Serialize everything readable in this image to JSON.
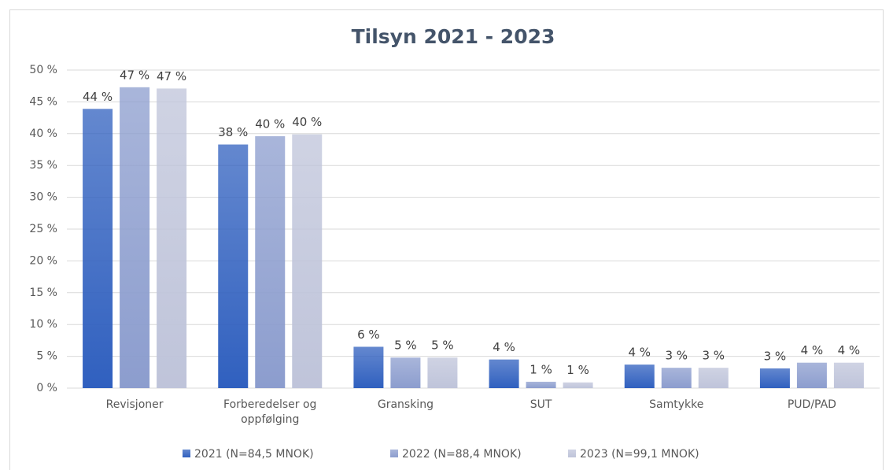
{
  "chart_data": {
    "type": "bar",
    "title": "Tilsyn 2021 - 2023",
    "categories": [
      "Revisjoner",
      "Forberedelser og oppfølging",
      "Gransking",
      "SUT",
      "Samtykke",
      "PUD/PAD"
    ],
    "series": [
      {
        "name": "2021 (N=84,5 MNOK)",
        "color": "#3060bf",
        "values": [
          43.9,
          38.3,
          6.5,
          4.5,
          3.7,
          3.1
        ],
        "value_labels": [
          "44 %",
          "38 %",
          "6 %",
          "4 %",
          "4 %",
          "3 %"
        ]
      },
      {
        "name": "2022 (N=88,4 MNOK)",
        "color": "#8c9dce",
        "values": [
          47.3,
          39.6,
          4.8,
          1.0,
          3.2,
          4.0
        ],
        "value_labels": [
          "47 %",
          "40 %",
          "5 %",
          "1 %",
          "3 %",
          "4 %"
        ]
      },
      {
        "name": "2023 (N=99,1 MNOK)",
        "color": "#bfc4da",
        "values": [
          47.1,
          39.9,
          4.8,
          0.9,
          3.2,
          4.0
        ],
        "value_labels": [
          "47 %",
          "40 %",
          "5 %",
          "1 %",
          "3 %",
          "4 %"
        ]
      }
    ],
    "ylim": [
      0,
      50
    ],
    "yticks": [
      {
        "value": 0,
        "label": "0 %"
      },
      {
        "value": 5,
        "label": "5 %"
      },
      {
        "value": 10,
        "label": "10 %"
      },
      {
        "value": 15,
        "label": "15 %"
      },
      {
        "value": 20,
        "label": "20 %"
      },
      {
        "value": 25,
        "label": "25 %"
      },
      {
        "value": 30,
        "label": "30 %"
      },
      {
        "value": 35,
        "label": "35 %"
      },
      {
        "value": 40,
        "label": "40 %"
      },
      {
        "value": 45,
        "label": "45 %"
      },
      {
        "value": 50,
        "label": "50 %"
      }
    ],
    "grid": true,
    "legend": "bottom"
  }
}
